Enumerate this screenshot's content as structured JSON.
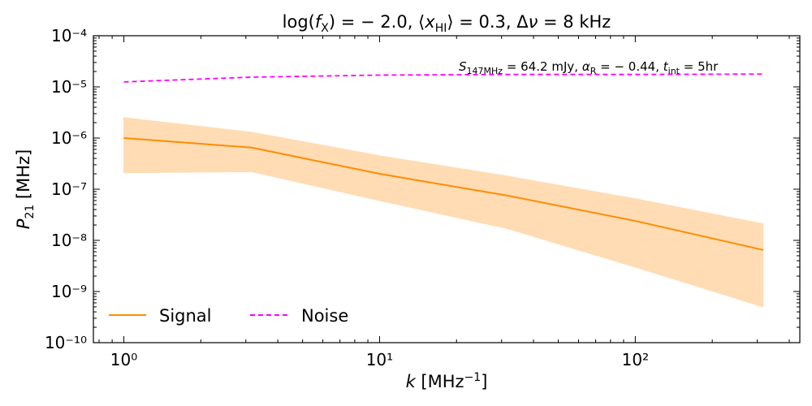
{
  "chart_data": {
    "type": "line",
    "title": "log(f_X) = −2.0,  ⟨x_HI⟩ = 0.3,  Δν = 8 kHz",
    "annotation": "S_147MHz = 64.2 mJy,  α_R = −0.44,  t_int = 5hr",
    "xlabel": "k [MHz⁻¹]",
    "ylabel": "P_21 [MHz]",
    "xscale": "log",
    "yscale": "log",
    "xlim": [
      0.76,
      440
    ],
    "ylim": [
      1e-10,
      0.0001
    ],
    "x_ticks": [
      {
        "value": 1,
        "label": "10⁰"
      },
      {
        "value": 10,
        "label": "10¹"
      },
      {
        "value": 100,
        "label": "10²"
      }
    ],
    "y_ticks": [
      {
        "value": 1e-10,
        "label": "10⁻¹⁰"
      },
      {
        "value": 1e-09,
        "label": "10⁻⁹"
      },
      {
        "value": 1e-08,
        "label": "10⁻⁸"
      },
      {
        "value": 1e-07,
        "label": "10⁻⁷"
      },
      {
        "value": 1e-06,
        "label": "10⁻⁶"
      },
      {
        "value": 1e-05,
        "label": "10⁻⁵"
      },
      {
        "value": 0.0001,
        "label": "10⁻⁴"
      }
    ],
    "legend_placement": "lower-left",
    "grid": false,
    "series": [
      {
        "name": "Signal",
        "style": "solid",
        "color": "#ff8c00",
        "band_color": "#ffdcb3",
        "x": [
          1.0,
          3.16,
          10.0,
          31.6,
          100.0,
          316.0
        ],
        "y": [
          1e-06,
          6.5e-07,
          2e-07,
          7.5e-08,
          2.4e-08,
          6.5e-09
        ],
        "band_upper": [
          2.5e-06,
          1.3e-06,
          4.5e-07,
          1.8e-07,
          6.5e-08,
          2.1e-08
        ],
        "band_lower": [
          2.1e-07,
          2.2e-07,
          6e-08,
          1.7e-08,
          3e-09,
          5e-10
        ]
      },
      {
        "name": "Noise",
        "style": "dashed",
        "color": "#ff00ff",
        "x": [
          1.0,
          3.16,
          10.0,
          31.6,
          100.0,
          316.0
        ],
        "y": [
          1.25e-05,
          1.55e-05,
          1.7e-05,
          1.75e-05,
          1.75e-05,
          1.78e-05
        ]
      }
    ]
  }
}
